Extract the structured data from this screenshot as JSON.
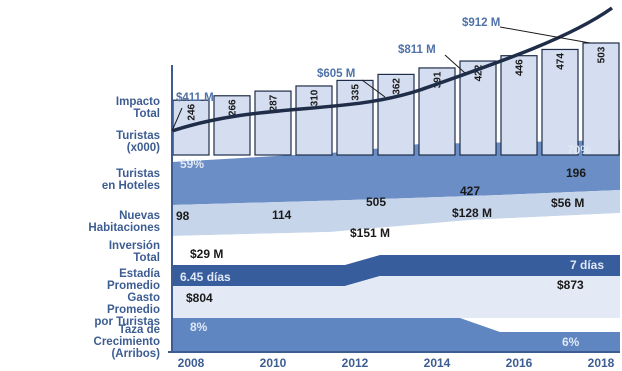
{
  "chart_data": {
    "type": "bar",
    "categories": [
      "2008",
      "2009",
      "2010",
      "2011",
      "2012",
      "2013",
      "2014",
      "2015",
      "2016",
      "2017",
      "2018"
    ],
    "x_tick_labels": [
      "2008",
      "2010",
      "2012",
      "2014",
      "2016",
      "2018"
    ],
    "row_labels": [
      "Impacto\nTotal",
      "Turistas\n(x000)",
      "Turistas\nen Hoteles",
      "Nuevas\nHabitaciones",
      "Inversión\nTotal",
      "Estadía\nPromedio",
      "Gasto\nPromedio\npor Turistas",
      "Taza de\nCrecimiento\n(Arribos)"
    ],
    "series": [
      {
        "name": "Turistas (x000)",
        "values": [
          246,
          266,
          287,
          310,
          335,
          362,
          391,
          422,
          446,
          474,
          503
        ]
      }
    ],
    "impacto_total_callouts": [
      {
        "year": "2008",
        "label": "$411 M"
      },
      {
        "year": "2013",
        "label": "$605 M"
      },
      {
        "year": "2015",
        "label": "$811 M"
      },
      {
        "year": "2017",
        "label": "$912 M"
      }
    ],
    "turistas_en_hoteles": {
      "start": "59%",
      "end": "70%"
    },
    "nuevas_habitaciones": [
      "98",
      "114",
      "505",
      "427",
      "196"
    ],
    "inversion_total": [
      "$29 M",
      "$151 M",
      "$128 M",
      "$56 M"
    ],
    "estadia_promedio": {
      "start": "6.45 días",
      "end": "7 días"
    },
    "gasto_promedio": {
      "start": "$804",
      "end": "$873"
    },
    "taza_crecimiento": {
      "start": "8%",
      "end": "6%"
    }
  }
}
